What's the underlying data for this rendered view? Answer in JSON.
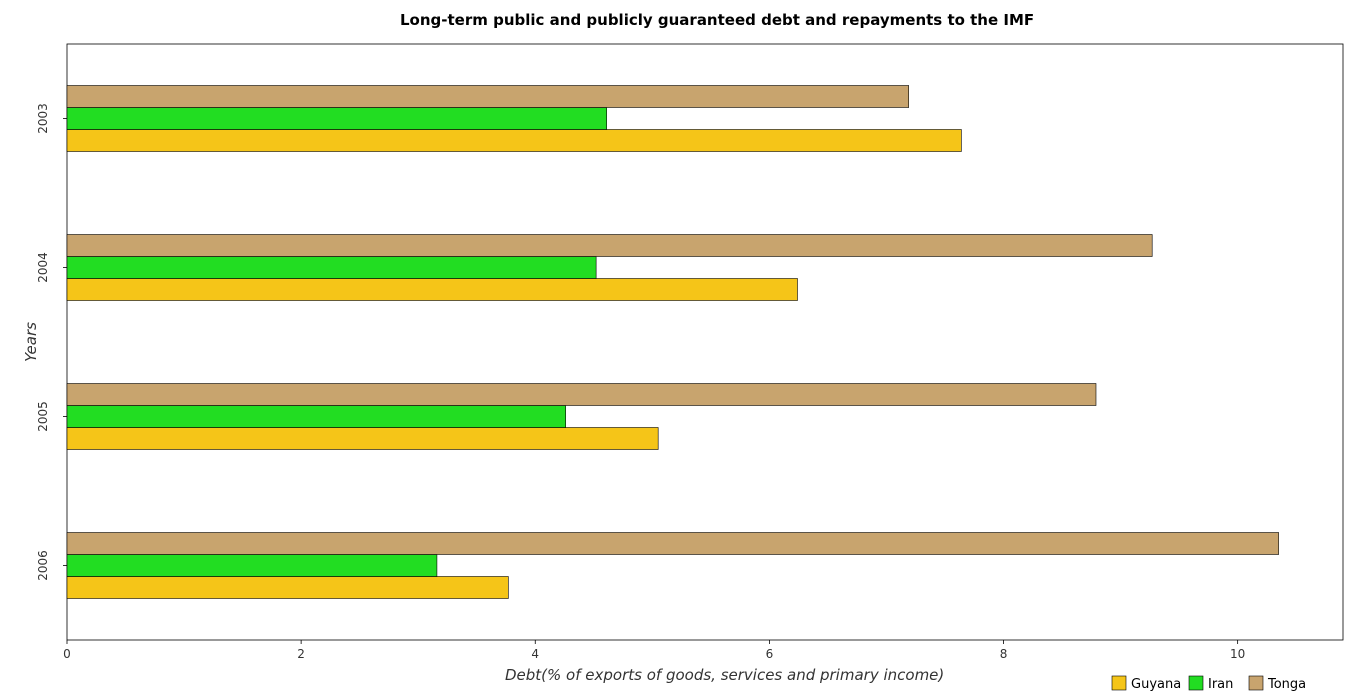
{
  "chart_data": {
    "type": "bar",
    "orientation": "horizontal",
    "title": "Long-term public and publicly guaranteed debt and repayments to the IMF",
    "xlabel": "Debt(% of exports of goods, services and primary income)",
    "ylabel": "Years",
    "categories": [
      "2003",
      "2004",
      "2005",
      "2006"
    ],
    "x_ticks": [
      "0",
      "2",
      "4",
      "6",
      "8",
      "10"
    ],
    "xlim": [
      0,
      10.9
    ],
    "series": [
      {
        "name": "Guyana",
        "color": "#f5c518",
        "values": [
          7.64,
          6.24,
          5.05,
          3.77
        ]
      },
      {
        "name": "Iran",
        "color": "#22dd22",
        "values": [
          4.61,
          4.52,
          4.26,
          3.16
        ]
      },
      {
        "name": "Tonga",
        "color": "#c8a46e",
        "values": [
          7.19,
          9.27,
          8.79,
          10.35
        ]
      }
    ],
    "grid": false,
    "legend_position": "bottom-right"
  }
}
